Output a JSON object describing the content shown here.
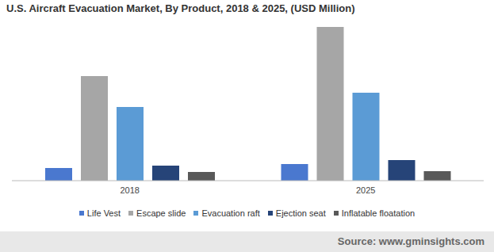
{
  "chart_data": {
    "type": "bar",
    "title": "U.S. Aircraft Evacuation Market, By Product, 2018 & 2025, (USD Million)",
    "source": "Source: www.gminsights.com",
    "categories": [
      "2018",
      "2025"
    ],
    "series": [
      {
        "name": "Life Vest",
        "color": "#4a78cf",
        "values": [
          16,
          21
        ]
      },
      {
        "name": "Escape slide",
        "color": "#a6a6a6",
        "values": [
          132,
          194
        ]
      },
      {
        "name": "Evacuation raft",
        "color": "#5b9bd5",
        "values": [
          93,
          111
        ]
      },
      {
        "name": "Ejection seat",
        "color": "#264478",
        "values": [
          19,
          26
        ]
      },
      {
        "name": "Inflatable floatation",
        "color": "#595959",
        "values": [
          11,
          12
        ]
      }
    ],
    "ylim": [
      0,
      210
    ],
    "tick_labels": "x",
    "legend": "bottom"
  }
}
